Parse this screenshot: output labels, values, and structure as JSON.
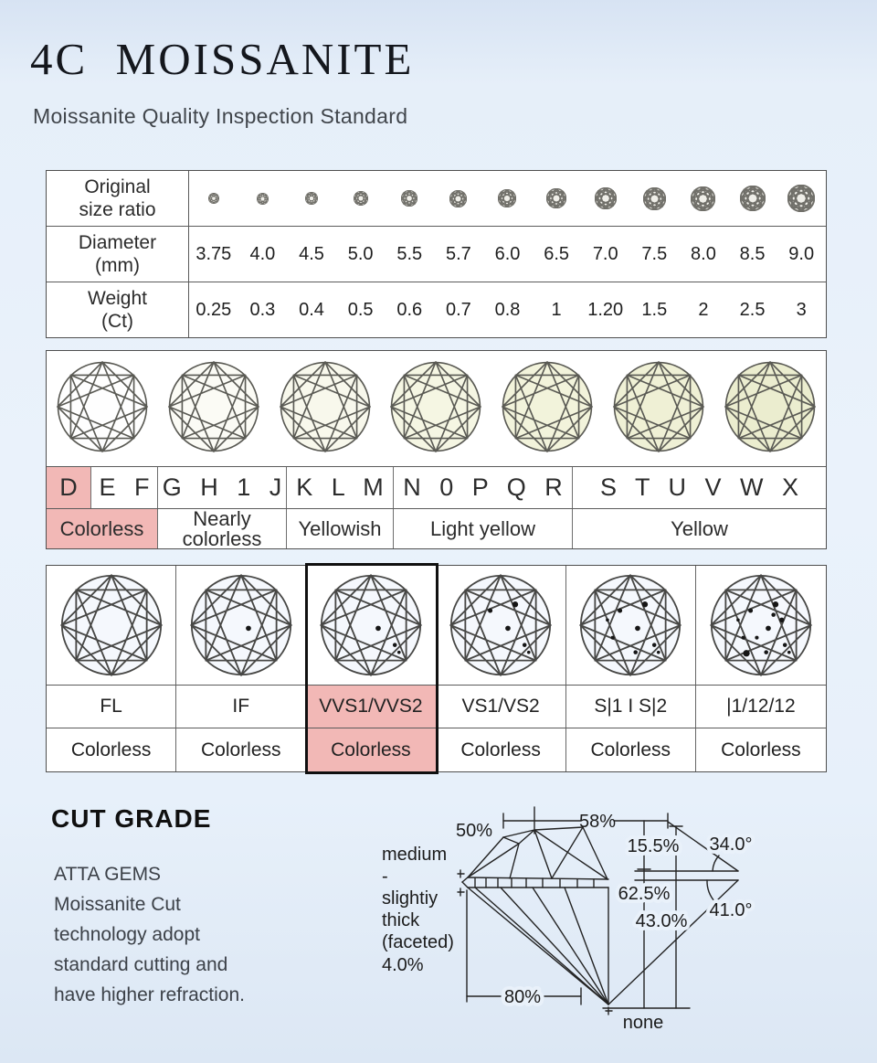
{
  "header": {
    "title": "4C  MOISSANITE",
    "subtitle": "Moissanite Quality Inspection Standard"
  },
  "size_table": {
    "row_headers": [
      {
        "line1": "Original",
        "line2": "size ratio"
      },
      {
        "line1": "Diameter",
        "line2": "(mm)"
      },
      {
        "line1": "Weight",
        "line2": "(Ct)"
      }
    ],
    "diameters": [
      "3.75",
      "4.0",
      "4.5",
      "5.0",
      "5.5",
      "5.7",
      "6.0",
      "6.5",
      "7.0",
      "7.5",
      "8.0",
      "8.5",
      "9.0"
    ],
    "weights": [
      "0.25",
      "0.3",
      "0.4",
      "0.5",
      "0.6",
      "0.7",
      "0.8",
      "1",
      "1.20",
      "1.5",
      "2",
      "2.5",
      "3"
    ]
  },
  "color_table": {
    "stone_tints": [
      "#fefefe",
      "#fbfbf5",
      "#f8f8ec",
      "#f5f6e3",
      "#f2f3db",
      "#eff0d5",
      "#ebedcf"
    ],
    "letter_groups": [
      {
        "letters": "D",
        "highlight": true
      },
      {
        "letters": "E F",
        "highlight": false
      },
      {
        "letters": "G H 1 J",
        "highlight": false
      },
      {
        "letters": "K L M",
        "highlight": false
      },
      {
        "letters": "N 0 P Q R",
        "highlight": false
      },
      {
        "letters": "S T U V W X",
        "highlight": false
      }
    ],
    "labels": [
      {
        "line1": "Colorless",
        "line2": "",
        "highlight": true
      },
      {
        "line1": "Nearly",
        "line2": "colorless",
        "highlight": false
      },
      {
        "line1": "Yellowish",
        "line2": "",
        "highlight": false
      },
      {
        "line1": "Light yellow",
        "line2": "",
        "highlight": false
      },
      {
        "line1": "Yellow",
        "line2": "",
        "highlight": false
      }
    ]
  },
  "clarity_table": {
    "stone_tint": "#f5f8fd",
    "columns": [
      {
        "grade": "FL",
        "color_label": "Colorless",
        "inclusions": 0,
        "highlight": false
      },
      {
        "grade": "IF",
        "color_label": "Colorless",
        "inclusions": 1,
        "highlight": false
      },
      {
        "grade": "VVS1/VVS2",
        "color_label": "Colorless",
        "inclusions": 3,
        "highlight": true
      },
      {
        "grade": "VS1/VS2",
        "color_label": "Colorless",
        "inclusions": 5,
        "highlight": false
      },
      {
        "grade": "S|1 I S|2",
        "color_label": "Colorless",
        "inclusions": 8,
        "highlight": false
      },
      {
        "grade": "|1/12/12",
        "color_label": "Colorless",
        "inclusions": 12,
        "highlight": false
      }
    ]
  },
  "cut_grade": {
    "heading": "CUT GRADE",
    "paragraph_lines": [
      "ATTA GEMS",
      "Moissanite Cut",
      "technology adopt",
      "standard cutting and",
      "have higher refraction."
    ],
    "diagram_labels": {
      "table_pct": "50%",
      "width_pct": "58%",
      "crown_height_pct": "15.5%",
      "crown_angle": "34.0°",
      "total_depth_pct": "62.5%",
      "pavilion_depth_pct": "43.0%",
      "pavilion_angle": "41.0°",
      "girdle": [
        "medium",
        "-",
        "slightiy",
        "thick",
        "(faceted)",
        "4.0%"
      ],
      "lower_half_pct": "80%",
      "culet": "none"
    }
  },
  "colors": {
    "highlight_pink": "#f2b8b6",
    "background": "#e9f1fb",
    "table_border": "#4f4f4f"
  }
}
